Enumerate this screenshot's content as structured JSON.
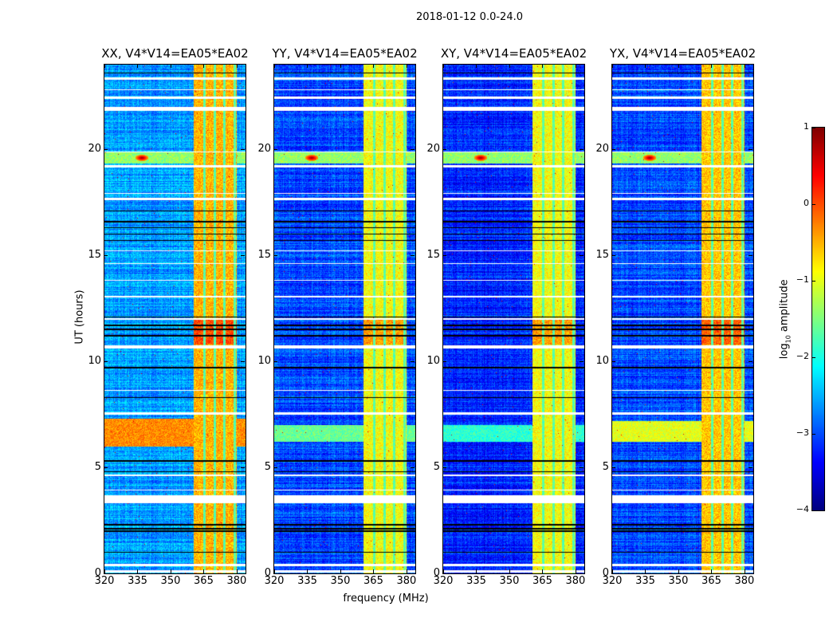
{
  "suptitle": "2018-01-12 0.0-24.0",
  "chart_data": {
    "type": "heatmap",
    "xlabel": "frequency (MHz)",
    "ylabel": "UT (hours)",
    "xlim": [
      320,
      384
    ],
    "ylim": [
      0,
      24
    ],
    "xticks": [
      320,
      335,
      350,
      365,
      380
    ],
    "yticks": [
      0,
      5,
      10,
      15,
      20
    ],
    "colorbar": {
      "label_prefix": "log",
      "label_sub": "10",
      "label_suffix": " amplitude",
      "colormap": "jet",
      "range": [
        -4,
        1
      ],
      "ticks": [
        1,
        0,
        -1,
        -2,
        -3,
        -4
      ]
    },
    "features": {
      "bright_band_mhz": [
        360.5,
        380
      ],
      "band_gaps_mhz": [
        365.5,
        370,
        374.5,
        379
      ],
      "rfi_spike": {
        "hour": 19.6,
        "freq_mhz": 337,
        "log_amp": 1
      },
      "flagged_hours_white": [
        [
          0.05,
          0.15
        ],
        [
          0.35,
          0.45
        ],
        [
          3.3,
          3.7
        ],
        [
          3.9,
          3.95
        ],
        [
          4.6,
          4.65
        ],
        [
          7.5,
          7.6
        ],
        [
          8.6,
          8.65
        ],
        [
          10.6,
          10.75
        ],
        [
          11.95,
          12.05
        ],
        [
          13.0,
          13.1
        ],
        [
          13.8,
          13.85
        ],
        [
          14.6,
          14.65
        ],
        [
          15.2,
          15.25
        ],
        [
          17.6,
          17.7
        ],
        [
          17.9,
          17.95
        ],
        [
          19.15,
          19.25
        ],
        [
          19.85,
          19.9
        ],
        [
          21.8,
          22.0
        ],
        [
          22.4,
          22.5
        ],
        [
          22.8,
          22.85
        ],
        [
          23.3,
          23.4
        ]
      ],
      "flagged_hours_black": [
        1.0,
        2.0,
        2.1,
        2.3,
        4.8,
        5.3,
        8.3,
        9.7,
        11.2,
        11.5,
        11.7,
        12.1,
        15.7,
        16.0,
        16.3,
        16.6,
        17.1,
        23.6
      ]
    },
    "panels": [
      {
        "title": "XX, V4*V14=EA05*EA02",
        "base_level": -2.6,
        "band_level": -0.5,
        "elevated": {
          "hours": [
            6.0,
            7.3
          ],
          "level": -0.3
        }
      },
      {
        "title": "YY, V4*V14=EA05*EA02",
        "base_level": -3.0,
        "band_level": -0.9,
        "elevated": {
          "hours": [
            6.2,
            7.0
          ],
          "level": -1.6
        }
      },
      {
        "title": "XY, V4*V14=EA05*EA02",
        "base_level": -3.2,
        "band_level": -0.9,
        "elevated": {
          "hours": [
            6.2,
            7.0
          ],
          "level": -1.9
        }
      },
      {
        "title": "YX, V4*V14=EA05*EA02",
        "base_level": -3.0,
        "band_level": -0.6,
        "elevated": {
          "hours": [
            6.2,
            7.2
          ],
          "level": -1.0
        }
      }
    ]
  }
}
